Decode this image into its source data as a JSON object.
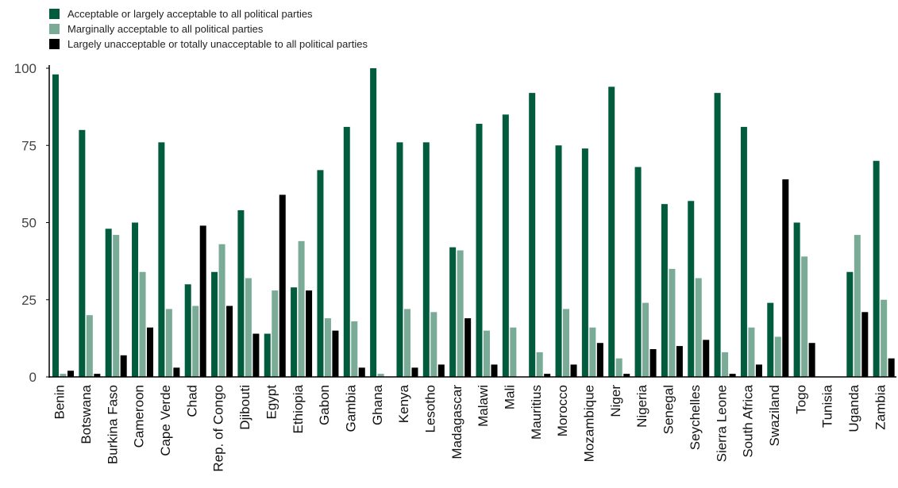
{
  "chart_data": {
    "type": "bar",
    "title": "",
    "xlabel": "",
    "ylabel": "",
    "ylim": [
      0,
      100
    ],
    "yticks": [
      0,
      25,
      50,
      75,
      100
    ],
    "legend_position": "top-left",
    "grid": false,
    "categories": [
      "Benin",
      "Botswana",
      "Burkina Faso",
      "Cameroon",
      "Cape Verde",
      "Chad",
      "Rep. of Congo",
      "Djibouti",
      "Egypt",
      "Ethiopia",
      "Gabon",
      "Gambia",
      "Ghana",
      "Kenya",
      "Lesotho",
      "Madagascar",
      "Malawi",
      "Mali",
      "Mauritius",
      "Morocco",
      "Mozambique",
      "Niger",
      "Nigeria",
      "Senegal",
      "Seychelles",
      "Sierra Leone",
      "South Africa",
      "Swaziland",
      "Togo",
      "Tunisia",
      "Uganda",
      "Zambia"
    ],
    "series": [
      {
        "name": "Acceptable or largely acceptable to all political parties",
        "color": "#005c3c",
        "values": [
          98,
          80,
          48,
          50,
          76,
          30,
          34,
          54,
          14,
          29,
          67,
          81,
          100,
          76,
          76,
          42,
          82,
          85,
          92,
          75,
          74,
          94,
          68,
          56,
          57,
          92,
          81,
          24,
          50,
          0,
          34,
          70
        ]
      },
      {
        "name": "Marginally acceptable to all political parties",
        "color": "#7aab96",
        "values": [
          1,
          20,
          46,
          34,
          22,
          23,
          43,
          32,
          28,
          44,
          19,
          18,
          1,
          22,
          21,
          41,
          15,
          16,
          8,
          22,
          16,
          6,
          24,
          35,
          32,
          8,
          16,
          13,
          39,
          0,
          46,
          25
        ]
      },
      {
        "name": "Largely unacceptable or totally unacceptable to all political parties",
        "color": "#000000",
        "values": [
          2,
          1,
          7,
          16,
          3,
          49,
          23,
          14,
          59,
          28,
          15,
          3,
          0,
          3,
          4,
          19,
          4,
          0,
          1,
          4,
          11,
          1,
          9,
          10,
          12,
          1,
          4,
          64,
          11,
          0,
          21,
          6
        ]
      }
    ]
  }
}
